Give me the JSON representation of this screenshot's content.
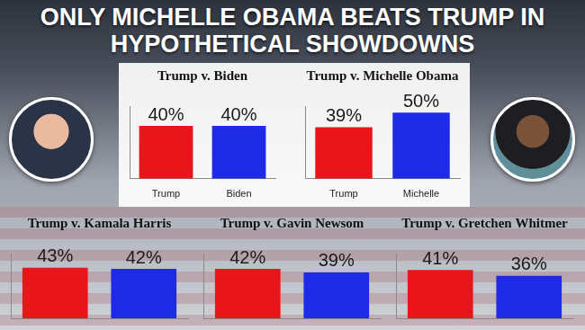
{
  "title": "ONLY MICHELLE OBAMA BEATS TRUMP IN HYPOTHETICAL SHOWDOWNS",
  "chart_data": [
    {
      "type": "bar",
      "title": "Trump v. Biden",
      "categories": [
        "Trump",
        "Biden"
      ],
      "values": [
        40,
        40
      ],
      "value_labels": [
        "40%",
        "40%"
      ],
      "colors": [
        "#e8151b",
        "#1f2ae6"
      ],
      "data_labels": true,
      "ylim": [
        0,
        55
      ],
      "yticks": [],
      "grid": false,
      "tick_labels": "x"
    },
    {
      "type": "bar",
      "title": "Trump v. Michelle Obama",
      "categories": [
        "Trump",
        "Michelle"
      ],
      "values": [
        39,
        50
      ],
      "value_labels": [
        "39%",
        "50%"
      ],
      "colors": [
        "#e8151b",
        "#1f2ae6"
      ],
      "data_labels": true,
      "ylim": [
        0,
        55
      ],
      "yticks": [],
      "grid": false,
      "tick_labels": "x"
    },
    {
      "type": "bar",
      "title": "Trump v. Kamala Harris",
      "categories": [
        null,
        null
      ],
      "values": [
        43,
        42
      ],
      "value_labels": [
        "43%",
        "42%"
      ],
      "colors": [
        "#e8151b",
        "#1f2ae6"
      ],
      "data_labels": true,
      "ylim": [
        0,
        55
      ],
      "yticks": [],
      "grid": false,
      "tick_labels": false
    },
    {
      "type": "bar",
      "title": "Trump v. Gavin Newsom",
      "categories": [
        null,
        null
      ],
      "values": [
        42,
        39
      ],
      "value_labels": [
        "42%",
        "39%"
      ],
      "colors": [
        "#e8151b",
        "#1f2ae6"
      ],
      "data_labels": true,
      "ylim": [
        0,
        55
      ],
      "yticks": [],
      "grid": false,
      "tick_labels": false
    },
    {
      "type": "bar",
      "title": "Trump v. Gretchen Whitmer",
      "categories": [
        null,
        null
      ],
      "values": [
        41,
        36
      ],
      "value_labels": [
        "41%",
        "36%"
      ],
      "colors": [
        "#e8151b",
        "#1f2ae6"
      ],
      "data_labels": true,
      "ylim": [
        0,
        55
      ],
      "yticks": [],
      "grid": false,
      "tick_labels": false
    }
  ]
}
